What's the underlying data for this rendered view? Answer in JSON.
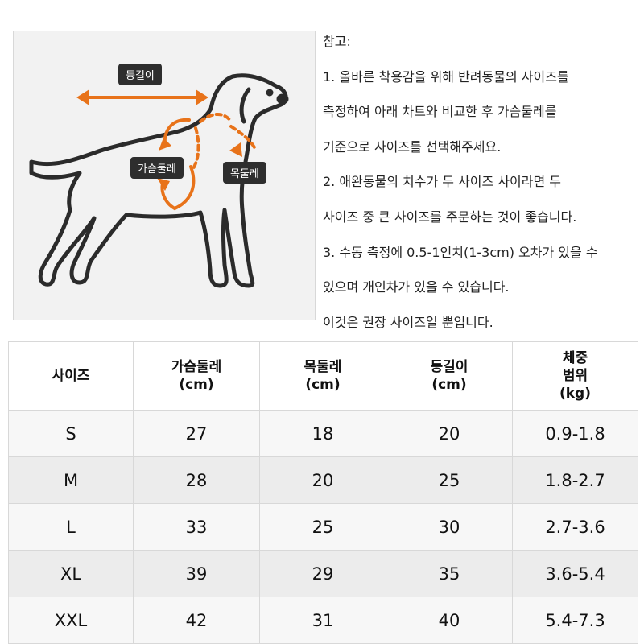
{
  "diagram": {
    "labels": {
      "back": "등길이",
      "chest": "가슴둘레",
      "neck": "목둘레"
    },
    "accent_color": "#e8731a",
    "dog_outline_color": "#2b2b2b",
    "icons": [
      "dog-silhouette-icon",
      "double-arrow-icon",
      "curved-arrow-icon"
    ]
  },
  "notes": [
    "참고:",
    "1. 올바른 착용감을 위해 반려동물의 사이즈를",
    "측정하여 아래 차트와 비교한 후 가슴둘레를",
    "기준으로 사이즈를 선택해주세요.",
    "2. 애완동물의 치수가 두 사이즈 사이라면 두",
    "사이즈 중 큰 사이즈를 주문하는 것이 좋습니다.",
    "3. 수동 측정에 0.5-1인치(1-3cm) 오차가 있을 수",
    "있으며  개인차가 있을 수 있습니다.",
    "이것은  권장 사이즈일 뿐입니다."
  ],
  "table": {
    "headers": [
      "사이즈",
      "가슴둘레\n(cm)",
      "목둘레\n(cm)",
      "등길이\n(cm)",
      "체중\n범위\n(kg)"
    ],
    "rows": [
      [
        "S",
        "27",
        "18",
        "20",
        "0.9-1.8"
      ],
      [
        "M",
        "28",
        "20",
        "25",
        "1.8-2.7"
      ],
      [
        "L",
        "33",
        "25",
        "30",
        "2.7-3.6"
      ],
      [
        "XL",
        "39",
        "29",
        "35",
        "3.6-5.4"
      ],
      [
        "XXL",
        "42",
        "31",
        "40",
        "5.4-7.3"
      ]
    ]
  }
}
